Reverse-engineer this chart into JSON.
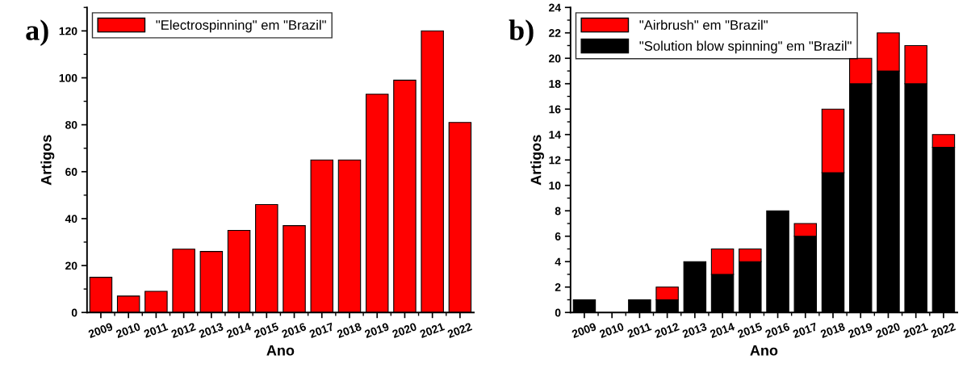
{
  "chart_data": [
    {
      "type": "bar",
      "title": "a)",
      "xlabel": "Ano",
      "ylabel": "Artigos",
      "categories": [
        "2009",
        "2010",
        "2011",
        "2012",
        "2013",
        "2014",
        "2015",
        "2016",
        "2017",
        "2018",
        "2019",
        "2020",
        "2021",
        "2022"
      ],
      "series": [
        {
          "name": "\"Electrospinning\" em \"Brazil\"",
          "color": "#ff0000",
          "values": [
            15,
            7,
            9,
            27,
            26,
            35,
            46,
            37,
            65,
            65,
            93,
            99,
            120,
            81
          ]
        }
      ],
      "ylim": [
        0,
        130
      ],
      "yticks": [
        0,
        20,
        40,
        60,
        80,
        100,
        120
      ],
      "grid": false,
      "legend": "top left"
    },
    {
      "type": "bar",
      "title": "b)",
      "xlabel": "Ano",
      "ylabel": "Artigos",
      "stacked": true,
      "categories": [
        "2009",
        "2010",
        "2011",
        "2012",
        "2013",
        "2014",
        "2015",
        "2016",
        "2017",
        "2018",
        "2019",
        "2020",
        "2021",
        "2022"
      ],
      "series": [
        {
          "name": "\"Solution blow spinning\" em \"Brazil\"",
          "color": "#000000",
          "values": [
            1,
            0,
            1,
            1,
            4,
            3,
            4,
            8,
            6,
            11,
            18,
            19,
            18,
            13
          ]
        },
        {
          "name": "\"Airbrush\" em \"Brazil\"",
          "color": "#ff0000",
          "values": [
            0,
            0,
            0,
            1,
            0,
            2,
            1,
            0,
            1,
            5,
            2,
            3,
            3,
            1
          ]
        }
      ],
      "ylim": [
        0,
        24
      ],
      "yticks": [
        0,
        2,
        4,
        6,
        8,
        10,
        12,
        14,
        16,
        18,
        20,
        22,
        24
      ],
      "grid": false,
      "legend": "top left"
    }
  ]
}
